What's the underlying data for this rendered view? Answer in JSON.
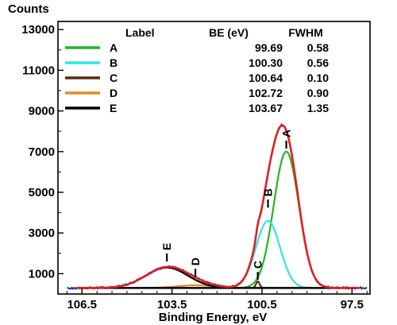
{
  "chart_data": {
    "type": "line",
    "title": "",
    "xlabel": "Binding Energy, eV",
    "ylabel": "Counts",
    "x_reversed": true,
    "xlim": [
      107.3,
      96.9
    ],
    "ylim": [
      0,
      13400
    ],
    "x_ticks": [
      106.5,
      103.5,
      100.5,
      97.5
    ],
    "y_ticks": [
      1000,
      3000,
      5000,
      7000,
      9000,
      11000,
      13000
    ],
    "grid": false,
    "legend": {
      "placement": "top-right",
      "headers": [
        "Label",
        "BE (eV)",
        "FWHM"
      ],
      "entries": [
        {
          "label": "A",
          "be": "99.69",
          "fwhm": "0.58",
          "color": "#1fb824"
        },
        {
          "label": "B",
          "be": "100.30",
          "fwhm": "0.56",
          "color": "#2ee8e0"
        },
        {
          "label": "C",
          "be": "100.64",
          "fwhm": "0.10",
          "color": "#5a2a10"
        },
        {
          "label": "D",
          "be": "102.72",
          "fwhm": "0.90",
          "color": "#e88a20"
        },
        {
          "label": "E",
          "be": "103.67",
          "fwhm": "1.35",
          "color": "#000000"
        }
      ]
    },
    "components": [
      {
        "name": "A",
        "center": 99.69,
        "amplitude": 6700,
        "sigma": 0.42,
        "color": "#1fb824"
      },
      {
        "name": "B",
        "center": 100.3,
        "amplitude": 3300,
        "sigma": 0.4,
        "color": "#2ee8e0"
      },
      {
        "name": "C",
        "center": 100.64,
        "amplitude": 320,
        "sigma": 0.06,
        "color": "#5a2a10"
      },
      {
        "name": "D",
        "center": 102.72,
        "amplitude": 130,
        "sigma": 0.6,
        "color": "#e88a20"
      },
      {
        "name": "E",
        "center": 103.67,
        "amplitude": 1000,
        "sigma": 0.7,
        "color": "#000000"
      }
    ],
    "background_counts": 300,
    "data_color": "#1a2fb0",
    "envelope_color": "#e02020",
    "peak_labels": [
      {
        "text": "A",
        "x": 99.69,
        "y": 7150
      },
      {
        "text": "B",
        "x": 100.3,
        "y": 4250
      },
      {
        "text": "C",
        "x": 100.64,
        "y": 700
      },
      {
        "text": "D",
        "x": 102.72,
        "y": 850
      },
      {
        "text": "E",
        "x": 103.67,
        "y": 1600
      }
    ]
  }
}
